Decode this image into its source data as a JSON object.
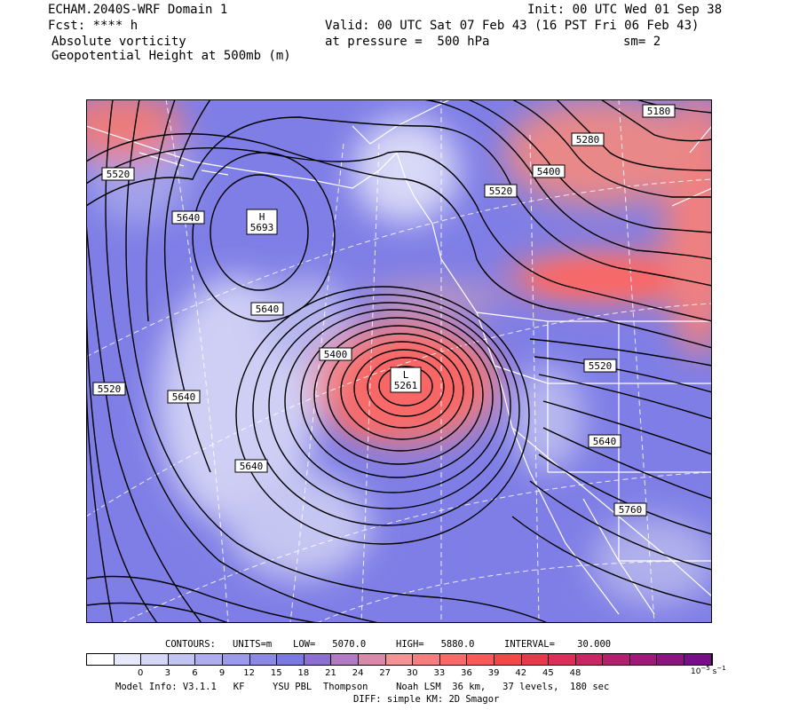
{
  "header": {
    "model_title": "ECHAM.2040S-WRF Domain 1",
    "fcst": "Fcst: **** h",
    "field1": "Absolute vorticity",
    "field2": "Geopotential Height at 500mb (m)",
    "init": "Init: 00 UTC Wed 01 Sep 38",
    "valid": "Valid: 00 UTC Sat 07 Feb 43 (16 PST Fri 06 Feb 43)",
    "pressure": "at pressure =  500 hPa",
    "smooth": "sm= 2"
  },
  "map": {
    "height_labels": [
      "5180",
      "5280",
      "5400",
      "5520",
      "5520",
      "5640",
      "5640",
      "5640",
      "5520",
      "5400",
      "5520",
      "5640",
      "5760",
      "5640"
    ],
    "high_center": {
      "letter": "H",
      "value": "5693"
    },
    "low_center": {
      "letter": "L",
      "value": "5261"
    }
  },
  "contours_info": {
    "contours": "CONTOURS:",
    "units": "UNITS=m",
    "low": "LOW=   5070.0",
    "high": "HIGH=   5880.0",
    "interval": "INTERVAL=    30.000"
  },
  "colorbar": {
    "ticks": [
      "0",
      "3",
      "6",
      "9",
      "12",
      "15",
      "18",
      "21",
      "24",
      "27",
      "30",
      "33",
      "36",
      "39",
      "42",
      "45",
      "48"
    ],
    "unit_base": "10",
    "unit_exp": "−5",
    "unit_tail": "s",
    "unit_tail_exp": "−1",
    "colors": [
      "#ffffff",
      "#e8e8fb",
      "#d6d6f6",
      "#c3c3f1",
      "#adadee",
      "#9b9be8",
      "#8a8ae3",
      "#7a7ade",
      "#8d6fd0",
      "#b17ac3",
      "#d78aa9",
      "#f29494",
      "#f57f7f",
      "#f76a6a",
      "#f75a5a",
      "#f24848",
      "#e63a4a",
      "#d83058",
      "#c62866",
      "#b22070",
      "#9e1a78",
      "#8a1580",
      "#760f86"
    ]
  },
  "footer": {
    "line1": "Model Info: V3.1.1   KF     YSU PBL  Thompson     Noah LSM  36 km,   37 levels,  180 sec",
    "line2": "DIFF: simple KM: 2D Smagor"
  }
}
